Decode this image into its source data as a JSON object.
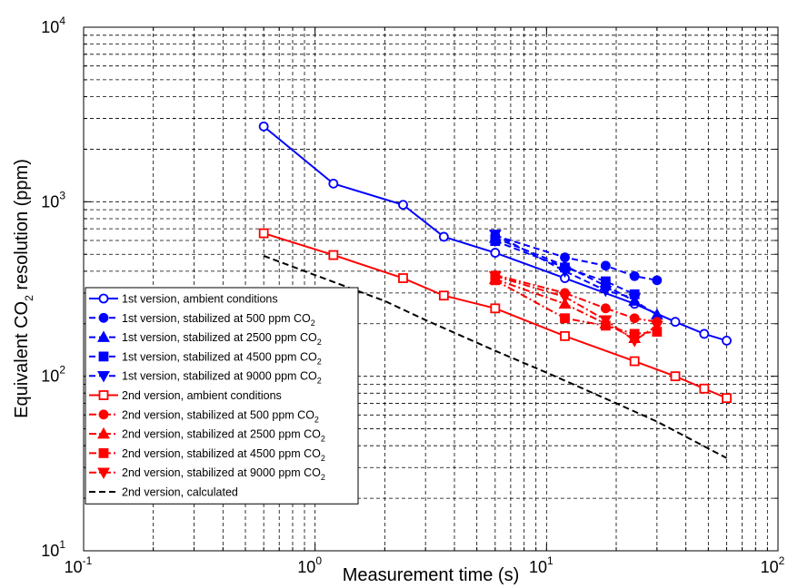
{
  "chart_data": {
    "type": "line",
    "xlabel": "Measurement time (s)",
    "ylabel_main": "Equivalent CO",
    "ylabel_sub": "2",
    "ylabel_tail": " resolution (ppm)",
    "x_scale": "log",
    "y_scale": "log",
    "xlim": [
      0.1,
      100
    ],
    "ylim": [
      10,
      10000
    ],
    "grid": true,
    "grid_style": "dashed",
    "legend_position": "lower-left",
    "x_ticks": [
      {
        "base": "10",
        "exp": "-1"
      },
      {
        "base": "10",
        "exp": "0"
      },
      {
        "base": "10",
        "exp": "1"
      },
      {
        "base": "10",
        "exp": "2"
      }
    ],
    "y_ticks": [
      {
        "base": "10",
        "exp": "1"
      },
      {
        "base": "10",
        "exp": "2"
      },
      {
        "base": "10",
        "exp": "3"
      },
      {
        "base": "10",
        "exp": "4"
      }
    ],
    "series": [
      {
        "name": "1st version, ambient conditions",
        "name_sub": "",
        "color": "#0000ff",
        "line": "solid",
        "marker": "circle",
        "fill": false,
        "points": [
          [
            0.6,
            2700
          ],
          [
            1.2,
            1270
          ],
          [
            2.4,
            960
          ],
          [
            3.6,
            630
          ],
          [
            6,
            510
          ],
          [
            12,
            365
          ],
          [
            24,
            260
          ],
          [
            36,
            205
          ],
          [
            48,
            175
          ],
          [
            60,
            160
          ]
        ]
      },
      {
        "name": "1st version, stabilized at 500 ppm CO",
        "name_sub": "2",
        "color": "#0000ff",
        "line": "dashed",
        "marker": "circle",
        "fill": true,
        "points": [
          [
            6,
            640
          ],
          [
            12,
            480
          ],
          [
            18,
            430
          ],
          [
            24,
            375
          ],
          [
            30,
            355
          ]
        ]
      },
      {
        "name": "1st version, stabilized at 2500 ppm CO",
        "name_sub": "2",
        "color": "#0000ff",
        "line": "dashed",
        "marker": "triangle-up",
        "fill": true,
        "points": [
          [
            6,
            620
          ],
          [
            12,
            430
          ],
          [
            18,
            330
          ],
          [
            24,
            270
          ],
          [
            30,
            225
          ]
        ]
      },
      {
        "name": "1st version, stabilized at 4500 ppm CO",
        "name_sub": "2",
        "color": "#0000ff",
        "line": "dashed",
        "marker": "square",
        "fill": true,
        "points": [
          [
            6,
            595
          ],
          [
            12,
            420
          ],
          [
            18,
            350
          ],
          [
            24,
            295
          ]
        ]
      },
      {
        "name": "1st version, stabilized at 9000 ppm CO",
        "name_sub": "2",
        "color": "#0000ff",
        "line": "dashed",
        "marker": "triangle-down",
        "fill": true,
        "points": [
          [
            6,
            650
          ],
          [
            12,
            400
          ],
          [
            18,
            310
          ],
          [
            24,
            280
          ]
        ]
      },
      {
        "name": "2nd version, ambient conditions",
        "name_sub": "",
        "color": "#ff0000",
        "line": "solid",
        "marker": "square",
        "fill": false,
        "points": [
          [
            0.6,
            660
          ],
          [
            1.2,
            495
          ],
          [
            2.4,
            365
          ],
          [
            3.6,
            290
          ],
          [
            6,
            245
          ],
          [
            12,
            170
          ],
          [
            24,
            122
          ],
          [
            36,
            100
          ],
          [
            48,
            85
          ],
          [
            60,
            75
          ]
        ]
      },
      {
        "name": "2nd version, stabilized at 500 ppm CO",
        "name_sub": "2",
        "color": "#ff0000",
        "line": "dashdot",
        "marker": "circle",
        "fill": true,
        "points": [
          [
            6,
            380
          ],
          [
            12,
            300
          ],
          [
            18,
            245
          ],
          [
            24,
            215
          ],
          [
            30,
            205
          ]
        ]
      },
      {
        "name": "2nd version, stabilized at 2500 ppm CO",
        "name_sub": "2",
        "color": "#ff0000",
        "line": "dashdot",
        "marker": "triangle-up",
        "fill": true,
        "points": [
          [
            6,
            360
          ],
          [
            12,
            260
          ],
          [
            18,
            200
          ],
          [
            24,
            165
          ]
        ]
      },
      {
        "name": "2nd version, stabilized at 4500 ppm CO",
        "name_sub": "2",
        "color": "#ff0000",
        "line": "dashdot",
        "marker": "square",
        "fill": true,
        "points": [
          [
            6,
            355
          ],
          [
            12,
            215
          ],
          [
            18,
            195
          ],
          [
            24,
            175
          ],
          [
            30,
            180
          ]
        ]
      },
      {
        "name": "2nd version, stabilized at 9000 ppm CO",
        "name_sub": "2",
        "color": "#ff0000",
        "line": "dashdot",
        "marker": "triangle-down",
        "fill": true,
        "points": [
          [
            6,
            375
          ],
          [
            12,
            285
          ],
          [
            18,
            210
          ],
          [
            24,
            160
          ],
          [
            30,
            195
          ]
        ]
      },
      {
        "name": "2nd version, calculated",
        "name_sub": "",
        "color": "#000000",
        "line": "dashed",
        "marker": "none",
        "fill": false,
        "points": [
          [
            0.6,
            490
          ],
          [
            1,
            380
          ],
          [
            2,
            270
          ],
          [
            3,
            210
          ],
          [
            6,
            140
          ],
          [
            10,
            105
          ],
          [
            20,
            70
          ],
          [
            30,
            55
          ],
          [
            60,
            34
          ]
        ]
      }
    ]
  }
}
